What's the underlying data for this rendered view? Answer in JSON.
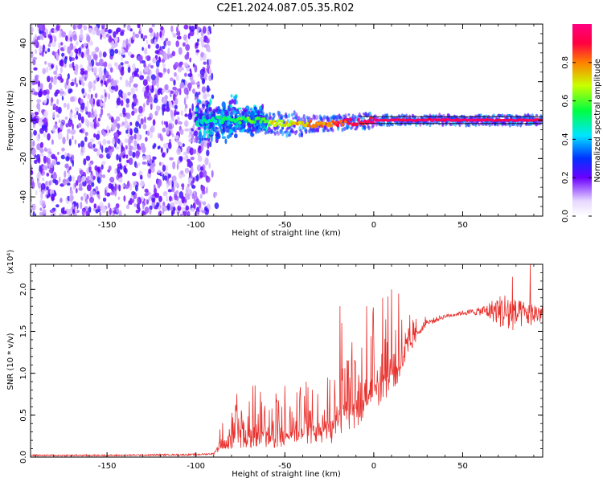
{
  "title": "C2E1.2024.087.05.35.R02",
  "colors": {
    "snr_line": "#e8302c",
    "axis": "#000000",
    "colorbar": [
      "#ffffff",
      "#6a00ff",
      "#0030ff",
      "#00e5ff",
      "#00ff40",
      "#c8ff00",
      "#ff8000",
      "#ff0040"
    ]
  },
  "chart_data": [
    {
      "type": "heatmap",
      "title": "",
      "xlabel": "Height of straight line (km)",
      "ylabel": "Frequency (Hz)",
      "xlim": [
        -193,
        95
      ],
      "ylim": [
        -50,
        50
      ],
      "xticks": [
        -150,
        -100,
        -50,
        0,
        50
      ],
      "yticks": [
        -40,
        -20,
        0,
        20,
        40
      ],
      "grid": false,
      "description_of_values": "noise speckle (low amplitude 0.2-0.5) for heights < -95 km across all frequencies; concentrated ridge near 0 Hz from -95 to 95 km; amplitude ~0.95 along 0 Hz for heights > 0 km",
      "ridge": [
        {
          "x": -95,
          "freq": 0,
          "amp": 0.45
        },
        {
          "x": -70,
          "freq": 0,
          "amp": 0.6
        },
        {
          "x": -50,
          "freq": -2,
          "amp": 0.7
        },
        {
          "x": -30,
          "freq": -2,
          "amp": 0.8
        },
        {
          "x": -10,
          "freq": -1,
          "amp": 0.9
        },
        {
          "x": 0,
          "freq": 0,
          "amp": 0.95
        },
        {
          "x": 50,
          "freq": 0,
          "amp": 0.97
        },
        {
          "x": 95,
          "freq": 0,
          "amp": 0.95
        }
      ],
      "colorbar": {
        "label": "Normalized spectral amplitude",
        "range": [
          0.0,
          1.0
        ],
        "ticks": [
          "0.0",
          "0.2",
          "0.4",
          "0.6",
          "0.8"
        ]
      }
    },
    {
      "type": "line",
      "title": "",
      "xlabel": "Height of straight line (km)",
      "ylabel": "SNR (10 * v/v)",
      "y_multiplier": "(x10⁴)",
      "xlim": [
        -193,
        95
      ],
      "ylim": [
        0.0,
        2.3
      ],
      "xticks": [
        -150,
        -100,
        -50,
        0,
        50
      ],
      "yticks": [
        "0.0",
        "0.5",
        "1.0",
        "1.5",
        "2.0"
      ],
      "grid": false,
      "series": [
        {
          "x": [
            -193,
            -150,
            -100,
            -90,
            -85,
            -75,
            -65,
            -55,
            -45,
            -35,
            -25,
            -15,
            -5,
            0,
            5,
            10,
            15,
            20,
            25,
            30,
            40,
            50,
            60,
            70,
            75,
            80,
            95
          ],
          "y": [
            0.02,
            0.02,
            0.03,
            0.04,
            0.2,
            0.35,
            0.32,
            0.3,
            0.35,
            0.38,
            0.42,
            0.6,
            0.75,
            0.9,
            1.0,
            1.05,
            1.15,
            1.35,
            1.5,
            1.6,
            1.68,
            1.72,
            1.74,
            1.75,
            1.72,
            1.7,
            1.72
          ],
          "spread": [
            0.0,
            0.0,
            0.01,
            0.02,
            0.25,
            0.55,
            0.45,
            0.45,
            0.45,
            0.5,
            0.6,
            0.8,
            0.7,
            0.8,
            0.9,
            0.8,
            0.6,
            0.3,
            0.15,
            0.08,
            0.05,
            0.05,
            0.1,
            0.35,
            0.55,
            0.35,
            0.25
          ]
        }
      ],
      "peaks": [
        {
          "x": -68,
          "y": 0.85
        },
        {
          "x": -50,
          "y": 0.85
        },
        {
          "x": -38,
          "y": 0.9
        },
        {
          "x": -26,
          "y": 0.95
        },
        {
          "x": -19,
          "y": 1.8
        },
        {
          "x": -18,
          "y": 1.6
        },
        {
          "x": -4,
          "y": 1.8
        },
        {
          "x": 5,
          "y": 1.9
        },
        {
          "x": 10,
          "y": 2.0
        },
        {
          "x": 14,
          "y": 1.95
        },
        {
          "x": 78,
          "y": 2.15
        },
        {
          "x": 88,
          "y": 2.3
        }
      ]
    }
  ]
}
